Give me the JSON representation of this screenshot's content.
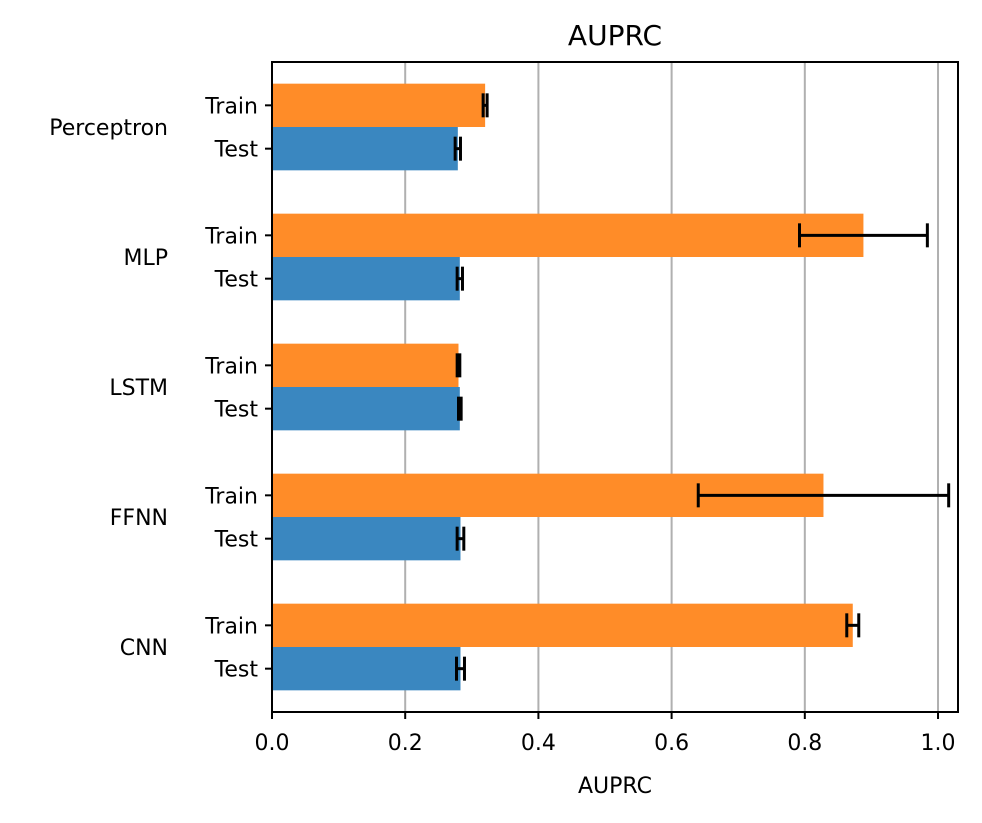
{
  "chart_data": {
    "type": "bar",
    "orientation": "horizontal",
    "title": "AUPRC",
    "xlabel": "AUPRC",
    "ylabel": "",
    "xlim": [
      0.0,
      1.03
    ],
    "xticks": [
      0.0,
      0.2,
      0.4,
      0.6,
      0.8,
      1.0
    ],
    "xtick_labels": [
      "0.0",
      "0.2",
      "0.4",
      "0.6",
      "0.8",
      "1.0"
    ],
    "grid": "x",
    "categories": [
      "Perceptron",
      "MLP",
      "LSTM",
      "FFNN",
      "CNN"
    ],
    "bar_labels": [
      "Train",
      "Test"
    ],
    "series": [
      {
        "label": "Train",
        "color": "#ff8c28",
        "values": [
          0.32,
          0.888,
          0.28,
          0.828,
          0.872
        ],
        "error": [
          0.003,
          0.096,
          0.002,
          0.188,
          0.009
        ]
      },
      {
        "label": "Test",
        "color": "#3a87c0",
        "values": [
          0.279,
          0.282,
          0.282,
          0.283,
          0.283
        ],
        "error": [
          0.004,
          0.004,
          0.002,
          0.005,
          0.006
        ]
      }
    ]
  }
}
